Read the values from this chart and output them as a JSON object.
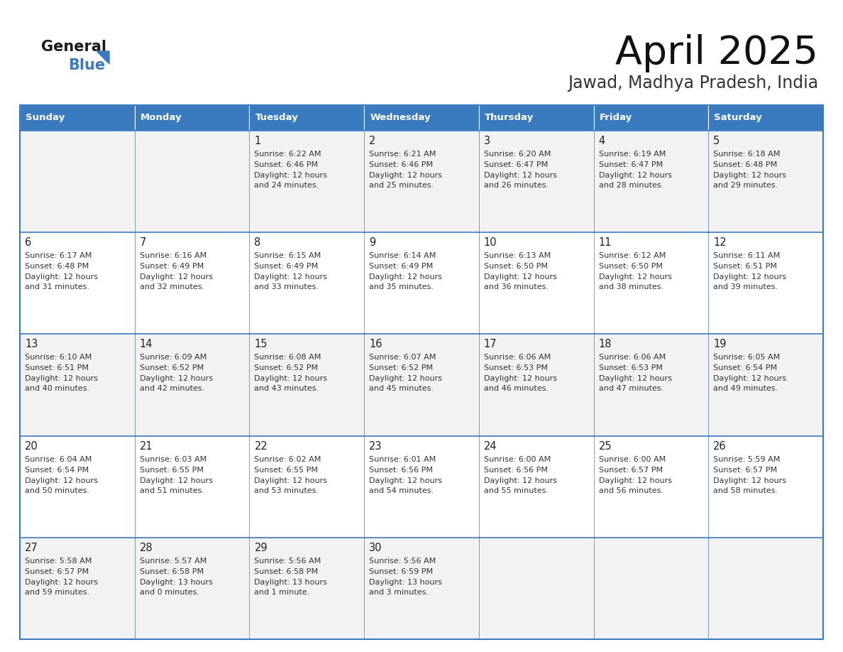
{
  "title": "April 2025",
  "subtitle": "Jawad, Madhya Pradesh, India",
  "header_color": "#3a7bbf",
  "header_text_color": "#ffffff",
  "cell_bg_even": "#f2f2f2",
  "cell_bg_odd": "#ffffff",
  "border_color": "#3a7bbf",
  "text_color": "#333333",
  "days_of_week": [
    "Sunday",
    "Monday",
    "Tuesday",
    "Wednesday",
    "Thursday",
    "Friday",
    "Saturday"
  ],
  "calendar_data": [
    [
      {
        "day": "",
        "sunrise": "",
        "sunset": "",
        "daylight": ""
      },
      {
        "day": "",
        "sunrise": "",
        "sunset": "",
        "daylight": ""
      },
      {
        "day": "1",
        "sunrise": "6:22 AM",
        "sunset": "6:46 PM",
        "daylight": "12 hours\nand 24 minutes."
      },
      {
        "day": "2",
        "sunrise": "6:21 AM",
        "sunset": "6:46 PM",
        "daylight": "12 hours\nand 25 minutes."
      },
      {
        "day": "3",
        "sunrise": "6:20 AM",
        "sunset": "6:47 PM",
        "daylight": "12 hours\nand 26 minutes."
      },
      {
        "day": "4",
        "sunrise": "6:19 AM",
        "sunset": "6:47 PM",
        "daylight": "12 hours\nand 28 minutes."
      },
      {
        "day": "5",
        "sunrise": "6:18 AM",
        "sunset": "6:48 PM",
        "daylight": "12 hours\nand 29 minutes."
      }
    ],
    [
      {
        "day": "6",
        "sunrise": "6:17 AM",
        "sunset": "6:48 PM",
        "daylight": "12 hours\nand 31 minutes."
      },
      {
        "day": "7",
        "sunrise": "6:16 AM",
        "sunset": "6:49 PM",
        "daylight": "12 hours\nand 32 minutes."
      },
      {
        "day": "8",
        "sunrise": "6:15 AM",
        "sunset": "6:49 PM",
        "daylight": "12 hours\nand 33 minutes."
      },
      {
        "day": "9",
        "sunrise": "6:14 AM",
        "sunset": "6:49 PM",
        "daylight": "12 hours\nand 35 minutes."
      },
      {
        "day": "10",
        "sunrise": "6:13 AM",
        "sunset": "6:50 PM",
        "daylight": "12 hours\nand 36 minutes."
      },
      {
        "day": "11",
        "sunrise": "6:12 AM",
        "sunset": "6:50 PM",
        "daylight": "12 hours\nand 38 minutes."
      },
      {
        "day": "12",
        "sunrise": "6:11 AM",
        "sunset": "6:51 PM",
        "daylight": "12 hours\nand 39 minutes."
      }
    ],
    [
      {
        "day": "13",
        "sunrise": "6:10 AM",
        "sunset": "6:51 PM",
        "daylight": "12 hours\nand 40 minutes."
      },
      {
        "day": "14",
        "sunrise": "6:09 AM",
        "sunset": "6:52 PM",
        "daylight": "12 hours\nand 42 minutes."
      },
      {
        "day": "15",
        "sunrise": "6:08 AM",
        "sunset": "6:52 PM",
        "daylight": "12 hours\nand 43 minutes."
      },
      {
        "day": "16",
        "sunrise": "6:07 AM",
        "sunset": "6:52 PM",
        "daylight": "12 hours\nand 45 minutes."
      },
      {
        "day": "17",
        "sunrise": "6:06 AM",
        "sunset": "6:53 PM",
        "daylight": "12 hours\nand 46 minutes."
      },
      {
        "day": "18",
        "sunrise": "6:06 AM",
        "sunset": "6:53 PM",
        "daylight": "12 hours\nand 47 minutes."
      },
      {
        "day": "19",
        "sunrise": "6:05 AM",
        "sunset": "6:54 PM",
        "daylight": "12 hours\nand 49 minutes."
      }
    ],
    [
      {
        "day": "20",
        "sunrise": "6:04 AM",
        "sunset": "6:54 PM",
        "daylight": "12 hours\nand 50 minutes."
      },
      {
        "day": "21",
        "sunrise": "6:03 AM",
        "sunset": "6:55 PM",
        "daylight": "12 hours\nand 51 minutes."
      },
      {
        "day": "22",
        "sunrise": "6:02 AM",
        "sunset": "6:55 PM",
        "daylight": "12 hours\nand 53 minutes."
      },
      {
        "day": "23",
        "sunrise": "6:01 AM",
        "sunset": "6:56 PM",
        "daylight": "12 hours\nand 54 minutes."
      },
      {
        "day": "24",
        "sunrise": "6:00 AM",
        "sunset": "6:56 PM",
        "daylight": "12 hours\nand 55 minutes."
      },
      {
        "day": "25",
        "sunrise": "6:00 AM",
        "sunset": "6:57 PM",
        "daylight": "12 hours\nand 56 minutes."
      },
      {
        "day": "26",
        "sunrise": "5:59 AM",
        "sunset": "6:57 PM",
        "daylight": "12 hours\nand 58 minutes."
      }
    ],
    [
      {
        "day": "27",
        "sunrise": "5:58 AM",
        "sunset": "6:57 PM",
        "daylight": "12 hours\nand 59 minutes."
      },
      {
        "day": "28",
        "sunrise": "5:57 AM",
        "sunset": "6:58 PM",
        "daylight": "13 hours\nand 0 minutes."
      },
      {
        "day": "29",
        "sunrise": "5:56 AM",
        "sunset": "6:58 PM",
        "daylight": "13 hours\nand 1 minute."
      },
      {
        "day": "30",
        "sunrise": "5:56 AM",
        "sunset": "6:59 PM",
        "daylight": "13 hours\nand 3 minutes."
      },
      {
        "day": "",
        "sunrise": "",
        "sunset": "",
        "daylight": ""
      },
      {
        "day": "",
        "sunrise": "",
        "sunset": "",
        "daylight": ""
      },
      {
        "day": "",
        "sunrise": "",
        "sunset": "",
        "daylight": ""
      }
    ]
  ],
  "fig_width": 11.88,
  "fig_height": 9.18,
  "dpi": 100
}
